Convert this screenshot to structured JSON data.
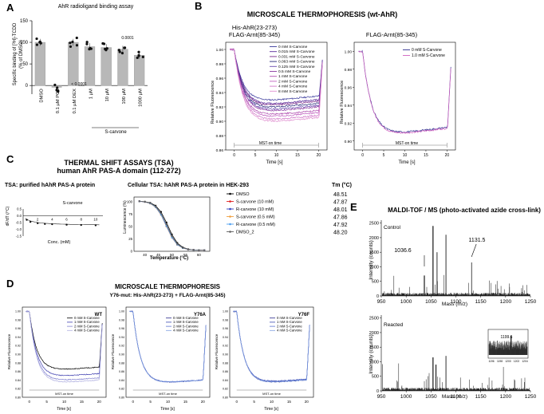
{
  "panels": {
    "A": {
      "letter": "A",
      "title": "AhR radioligand binding assay",
      "ylabel_line1": "Specific binding of [³H]-TCDD",
      "ylabel_line2": "(% of DMSO)",
      "yticks": [
        "0",
        "50",
        "100",
        "150"
      ],
      "categories": [
        "DMSO",
        "0.1 µM PCZ",
        "0.1 µM DEX",
        "1 µM",
        "10 µM",
        "100 µM",
        "1000 µM"
      ],
      "values": [
        100,
        -5,
        100,
        90,
        88,
        84,
        70
      ],
      "pvalue_left": "< 0.0001",
      "pvalue_right": "0.0001",
      "group_label": "S-carvone"
    },
    "B": {
      "letter": "B",
      "title": "MICROSCALE THERMOPHORESIS (wt-AhR)",
      "left_title_1": "His-AhR(23-273)",
      "left_title_2": "FLAG-Arnt(85-345)",
      "right_title": "FLAG-Arnt(85-345)",
      "ylabel": "Relative Fluorescence",
      "xlabel": "Time [s]",
      "mst_label": "MST-on time",
      "left_yticks": [
        "0.86",
        "0.88",
        "0.90",
        "0.92",
        "0.94",
        "0.96",
        "0.98",
        "1.00"
      ],
      "right_yticks": [
        "0.90",
        "0.92",
        "0.94",
        "0.96",
        "0.98",
        "1.00"
      ],
      "xticks": [
        "0",
        "5",
        "10",
        "15",
        "20"
      ],
      "left_legend": [
        "0 mM S-Carvone",
        "0.015 mM S-Carvone",
        "0.031 mM S-Carvone",
        "0.063 mM S-Carvone",
        "0.125 mM S-Carvone",
        "0.5 mM S-Carvone",
        "1 mM S-Carvone",
        "2 mM S-Carvone",
        "4 mM S-Carvone",
        "8 mM S-Carvone"
      ],
      "right_legend": [
        "0 mM S-Carvone",
        "1.0 mM S-Carvone"
      ]
    },
    "C": {
      "letter": "C",
      "title_1": "THERMAL SHIFT ASSAYS (TSA)",
      "title_2": "human AhR PAS-A domain (112-272)",
      "left_title": "TSA: purified hAhR PAS-A protein",
      "left_inner_label": "S-carvone",
      "left_ylabel": "dF/dT (/°C)",
      "left_yticks": [
        "0.5",
        "0.0",
        "-0.5",
        "-1.0",
        "-1.5"
      ],
      "left_xticks": [
        "2",
        "4",
        "6",
        "8",
        "10"
      ],
      "left_xlabel": "Conc. (mM)",
      "right_title": "Cellular TSA: hAhR PAS-A protein in HEK-293",
      "right_ylabel": "Luminescence (%)",
      "right_xlabel": "Temperature (°C)",
      "right_yticks": [
        "0",
        "25",
        "50",
        "75",
        "100"
      ],
      "right_xticks": [
        "40",
        "45",
        "50",
        "55",
        "60"
      ],
      "tm_header": "Tm (°C)",
      "legend": [
        {
          "label": "DMSO",
          "tm": "48.51",
          "color": "#000000"
        },
        {
          "label": "S-carvone (10 mM)",
          "tm": "47.87",
          "color": "#e02020"
        },
        {
          "label": "R-carvone (10 mM)",
          "tm": "48.01",
          "color": "#3040c0"
        },
        {
          "label": "S-carvone (0.5 mM)",
          "tm": "47.86",
          "color": "#f0a040"
        },
        {
          "label": "R-carvone (0.5 mM)",
          "tm": "47.92",
          "color": "#50a0f0"
        },
        {
          "label": "DMSO_2",
          "tm": "48.20",
          "color": "#606060"
        }
      ]
    },
    "D": {
      "letter": "D",
      "title_1": "MICROSCALE THERMOPHORESIS",
      "title_2": "Y76-mut: His-AhR(23-273) + FLAG-Arnt(85-345)",
      "ylabel": "Relative Fluorescence",
      "xlabel": "Time [s]",
      "mst_label": "MST-on time",
      "yticks": [
        "0.80",
        "0.82",
        "0.84",
        "0.86",
        "0.88",
        "0.90",
        "0.92",
        "0.94",
        "0.96",
        "0.98",
        "1.00"
      ],
      "xticks": [
        "0",
        "5",
        "10",
        "15",
        "20"
      ],
      "subpanels": [
        "WT",
        "Y76A",
        "Y76F"
      ],
      "legend": [
        "0 mM S-Carvone",
        "1 mM S-Carvone",
        "2 mM S-Carvone",
        "4 mM S-Carvone"
      ]
    },
    "E": {
      "letter": "E",
      "title": "MALDI-TOF / MS (photo-activated azide cross-link)",
      "top_label": "Control",
      "bottom_label": "Reacted",
      "ylabel": "Intensity (counts)",
      "xlabel": "Mass (m/z)",
      "yticks": [
        "0",
        "500",
        "1000",
        "1500",
        "2000",
        "2500"
      ],
      "xticks": [
        "950",
        "1000",
        "1050",
        "1100",
        "1150",
        "1200",
        "1250"
      ],
      "peak_1": "1036.6",
      "peak_2": "1131.5",
      "inset_peak": "1199.6",
      "inset_xticks": [
        "1196",
        "1198",
        "1200",
        "1202",
        "1204"
      ]
    }
  },
  "chart_data": [
    {
      "type": "bar",
      "title": "AhR radioligand binding assay",
      "categories": [
        "DMSO",
        "0.1 µM PCZ",
        "0.1 µM DEX",
        "1 µM",
        "10 µM",
        "100 µM",
        "1000 µM"
      ],
      "values": [
        100,
        -5,
        100,
        90,
        88,
        84,
        70
      ],
      "ylabel": "Specific binding of [3H]-TCDD (% of DMSO)",
      "ylim": [
        -20,
        150
      ]
    },
    {
      "type": "line",
      "title": "His-AhR(23-273) FLAG-Arnt(85-345)",
      "xlabel": "Time [s]",
      "ylabel": "Relative Fluorescence",
      "xlim": [
        -2,
        22
      ],
      "ylim": [
        0.86,
        1.01
      ],
      "series_minima": [
        0.925,
        0.92,
        0.918,
        0.915,
        0.912,
        0.91,
        0.905,
        0.902,
        0.898,
        0.895
      ]
    },
    {
      "type": "line",
      "title": "FLAG-Arnt(85-345)",
      "xlabel": "Time [s]",
      "ylabel": "Relative Fluorescence",
      "xlim": [
        -2,
        22
      ],
      "ylim": [
        0.89,
        1.01
      ],
      "series_minima": [
        0.905,
        0.904
      ]
    },
    {
      "type": "scatter",
      "title": "TSA: purified hAhR PAS-A protein",
      "x": [
        0.5,
        1,
        2,
        3,
        4,
        6,
        8,
        10
      ],
      "y": [
        -0.3,
        -0.45,
        -0.55,
        -0.6,
        -0.62,
        -0.66,
        -0.68,
        -0.7
      ],
      "xlabel": "Conc. (mM)",
      "ylabel": "dF/dT (/°C)",
      "xlim": [
        0,
        11
      ],
      "ylim": [
        -1.5,
        0.5
      ]
    },
    {
      "type": "line",
      "title": "Cellular TSA: hAhR PAS-A protein in HEK-293",
      "x": [
        38,
        40,
        42,
        44,
        46,
        48,
        50,
        52,
        54,
        56,
        58,
        60,
        62
      ],
      "series": [
        {
          "name": "DMSO",
          "tm": 48.51
        },
        {
          "name": "S-carvone (10 mM)",
          "tm": 47.87
        },
        {
          "name": "R-carvone (10 mM)",
          "tm": 48.01
        },
        {
          "name": "S-carvone (0.5 mM)",
          "tm": 47.86
        },
        {
          "name": "R-carvone (0.5 mM)",
          "tm": 47.92
        },
        {
          "name": "DMSO_2",
          "tm": 48.2
        }
      ],
      "xlabel": "Temperature (°C)",
      "ylabel": "Luminescence (%)",
      "xlim": [
        36,
        64
      ],
      "ylim": [
        0,
        110
      ]
    },
    {
      "type": "line",
      "title": "WT",
      "xlim": [
        -2,
        22
      ],
      "ylim": [
        0.8,
        1.01
      ],
      "series_minima": [
        0.86,
        0.845,
        0.835,
        0.83
      ]
    },
    {
      "type": "line",
      "title": "Y76A",
      "xlim": [
        -2,
        22
      ],
      "ylim": [
        0.8,
        1.01
      ],
      "series_minima": [
        0.83,
        0.83,
        0.83,
        0.83
      ]
    },
    {
      "type": "line",
      "title": "Y76F",
      "xlim": [
        -2,
        22
      ],
      "ylim": [
        0.8,
        1.01
      ],
      "series_minima": [
        0.83,
        0.832,
        0.831,
        0.83
      ]
    },
    {
      "type": "bar",
      "title": "MALDI-TOF Control",
      "xlim": [
        950,
        1250
      ],
      "ylim": [
        0,
        2600
      ],
      "peaks": [
        {
          "mz": 1036.6,
          "intensity": 700
        },
        {
          "mz": 1131.5,
          "intensity": 1150
        }
      ]
    },
    {
      "type": "bar",
      "title": "MALDI-TOF Reacted",
      "xlim": [
        950,
        1250
      ],
      "ylim": [
        0,
        2600
      ],
      "peaks": [
        {
          "mz": 1199.6,
          "intensity": 1500
        }
      ]
    }
  ]
}
